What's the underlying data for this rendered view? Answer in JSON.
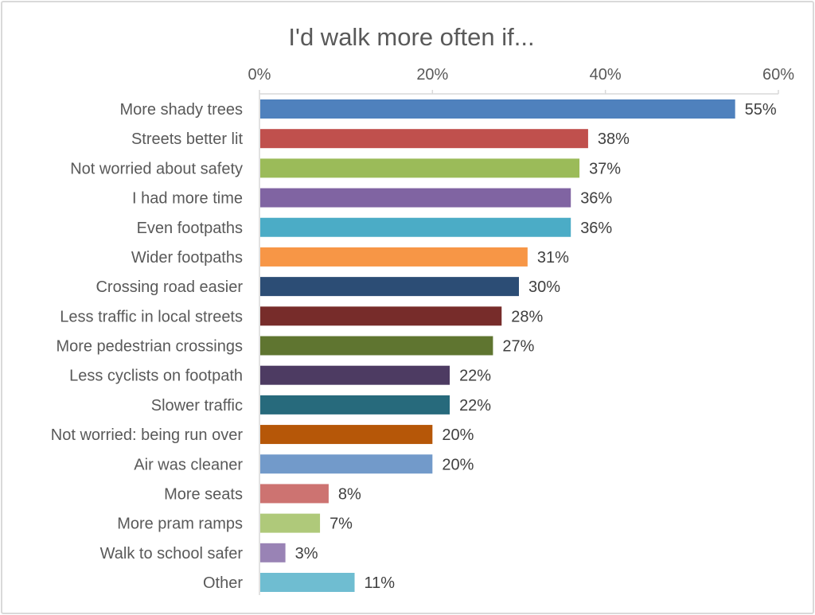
{
  "chart_data": {
    "type": "bar",
    "orientation": "horizontal",
    "title": "I'd walk more often if...",
    "xlabel": "",
    "ylabel": "",
    "xlim": [
      0,
      60
    ],
    "x_ticks": [
      0,
      20,
      40,
      60
    ],
    "x_tick_labels": [
      "0%",
      "20%",
      "40%",
      "60%"
    ],
    "grid": false,
    "legend": "none",
    "categories": [
      "More shady trees",
      "Streets better lit",
      "Not worried about safety",
      "I had more time",
      "Even footpaths",
      "Wider footpaths",
      "Crossing road easier",
      "Less traffic in local streets",
      "More pedestrian crossings",
      "Less cyclists on footpath",
      "Slower traffic",
      "Not worried: being run over",
      "Air was cleaner",
      "More seats",
      "More pram ramps",
      "Walk to school safer",
      "Other"
    ],
    "values": [
      55,
      38,
      37,
      36,
      36,
      31,
      30,
      28,
      27,
      22,
      22,
      20,
      20,
      8,
      7,
      3,
      11
    ],
    "value_labels": [
      "55%",
      "38%",
      "37%",
      "36%",
      "36%",
      "31%",
      "30%",
      "28%",
      "27%",
      "22%",
      "22%",
      "20%",
      "20%",
      "8%",
      "7%",
      "3%",
      "11%"
    ],
    "colors": [
      "#4F81BD",
      "#C0504D",
      "#9BBB59",
      "#8064A2",
      "#4BACC6",
      "#F79646",
      "#2C4D75",
      "#772C2A",
      "#5F7530",
      "#4D3B62",
      "#276A7C",
      "#B65708",
      "#729ACA",
      "#CD7371",
      "#AFC97A",
      "#9983B5",
      "#6FBDD1"
    ]
  }
}
